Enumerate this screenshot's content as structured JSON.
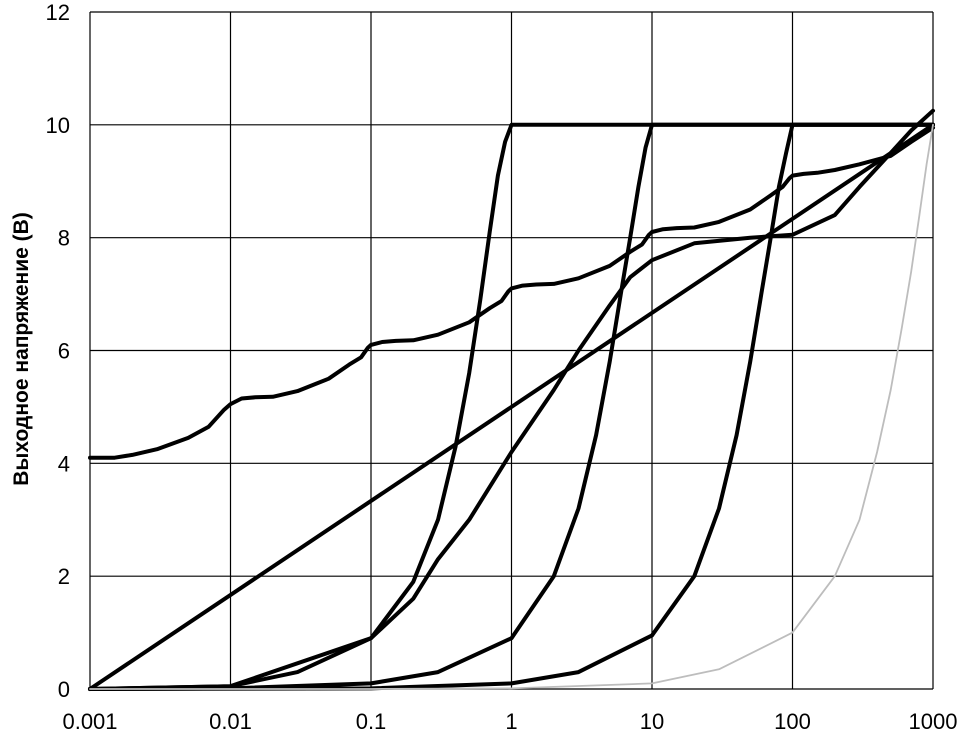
{
  "chart_data": {
    "type": "line",
    "ylabel": "Выходное напряжение (В)",
    "xlabel": "",
    "x_scale": "log",
    "xlim": [
      0.001,
      1000
    ],
    "ylim": [
      0,
      12
    ],
    "x_ticks": [
      0.001,
      0.01,
      0.1,
      1,
      10,
      100,
      1000
    ],
    "x_tick_labels": [
      "0.001",
      "0.01",
      "0.1",
      "1",
      "10",
      "100",
      "1000"
    ],
    "y_ticks": [
      0,
      2,
      4,
      6,
      8,
      10,
      12
    ],
    "y_tick_labels": [
      "0",
      "2",
      "4",
      "6",
      "8",
      "10",
      "12"
    ],
    "grid": true,
    "colors": {
      "series": "#000000",
      "light_series": "#bdbdbd",
      "grid": "#000000"
    },
    "series": [
      {
        "x": [
          0.001,
          1000
        ],
        "y": [
          0,
          10
        ]
      },
      {
        "x": [
          0.001,
          0.01,
          0.03,
          0.1,
          0.2,
          0.3,
          0.4,
          0.5,
          0.6,
          0.7,
          0.8,
          0.9,
          1,
          1000
        ],
        "y": [
          0,
          0.05,
          0.3,
          0.9,
          1.9,
          3,
          4.3,
          5.6,
          6.9,
          8.1,
          9.1,
          9.7,
          10,
          10
        ]
      },
      {
        "x": [
          0.001,
          0.01,
          0.1,
          0.3,
          1,
          2,
          3,
          4,
          5,
          6,
          7,
          8,
          9,
          10,
          1000
        ],
        "y": [
          0,
          0.01,
          0.1,
          0.3,
          0.9,
          2,
          3.2,
          4.5,
          5.8,
          7,
          8,
          8.9,
          9.6,
          10,
          10
        ]
      },
      {
        "x": [
          0.001,
          0.1,
          1,
          3,
          10,
          20,
          30,
          40,
          50,
          60,
          70,
          80,
          90,
          100,
          1000
        ],
        "y": [
          0,
          0.01,
          0.1,
          0.3,
          0.95,
          2,
          3.2,
          4.5,
          5.8,
          7,
          8,
          8.9,
          9.5,
          10,
          10
        ]
      },
      {
        "x": [
          0.001,
          0.01,
          0.1,
          0.2,
          0.3,
          0.5,
          1,
          2,
          3,
          5,
          7,
          10,
          20,
          50,
          100,
          200,
          300,
          500,
          700,
          1000
        ],
        "y": [
          0,
          0.05,
          0.9,
          1.6,
          2.3,
          3.0,
          4.2,
          5.3,
          6.0,
          6.8,
          7.3,
          7.6,
          7.9,
          8.0,
          8.05,
          8.4,
          8.9,
          9.5,
          9.9,
          10.25
        ]
      },
      {
        "x": [
          0.001,
          0.0015,
          0.002,
          0.003,
          0.005,
          0.007,
          0.009,
          0.01,
          0.012,
          0.015,
          0.02,
          0.03,
          0.05,
          0.07,
          0.085,
          0.095,
          0.1,
          0.12,
          0.15,
          0.2,
          0.3,
          0.5,
          0.7,
          0.85,
          0.95,
          1,
          1.2,
          1.5,
          2,
          3,
          5,
          7,
          8.5,
          9.5,
          10,
          12,
          15,
          20,
          30,
          50,
          70,
          85,
          95,
          100,
          120,
          150,
          200,
          300,
          500,
          700,
          1000
        ],
        "y": [
          4.1,
          4.1,
          4.15,
          4.25,
          4.45,
          4.65,
          4.95,
          5.05,
          5.15,
          5.17,
          5.18,
          5.28,
          5.5,
          5.75,
          5.88,
          6.05,
          6.1,
          6.15,
          6.17,
          6.18,
          6.28,
          6.5,
          6.75,
          6.88,
          7.05,
          7.1,
          7.15,
          7.17,
          7.18,
          7.28,
          7.5,
          7.75,
          7.88,
          8.05,
          8.1,
          8.15,
          8.17,
          8.18,
          8.28,
          8.5,
          8.75,
          8.9,
          9.05,
          9.1,
          9.13,
          9.15,
          9.2,
          9.3,
          9.45,
          9.7,
          9.95
        ]
      },
      {
        "x": [
          0.001,
          0.01,
          0.1,
          1,
          10,
          30,
          100,
          200,
          300,
          400,
          500,
          600,
          700,
          800,
          900,
          1000
        ],
        "y": [
          0,
          0,
          0,
          0.01,
          0.1,
          0.35,
          1.0,
          2.0,
          3.0,
          4.2,
          5.3,
          6.4,
          7.4,
          8.4,
          9.3,
          10.0
        ],
        "style": "light"
      }
    ]
  }
}
